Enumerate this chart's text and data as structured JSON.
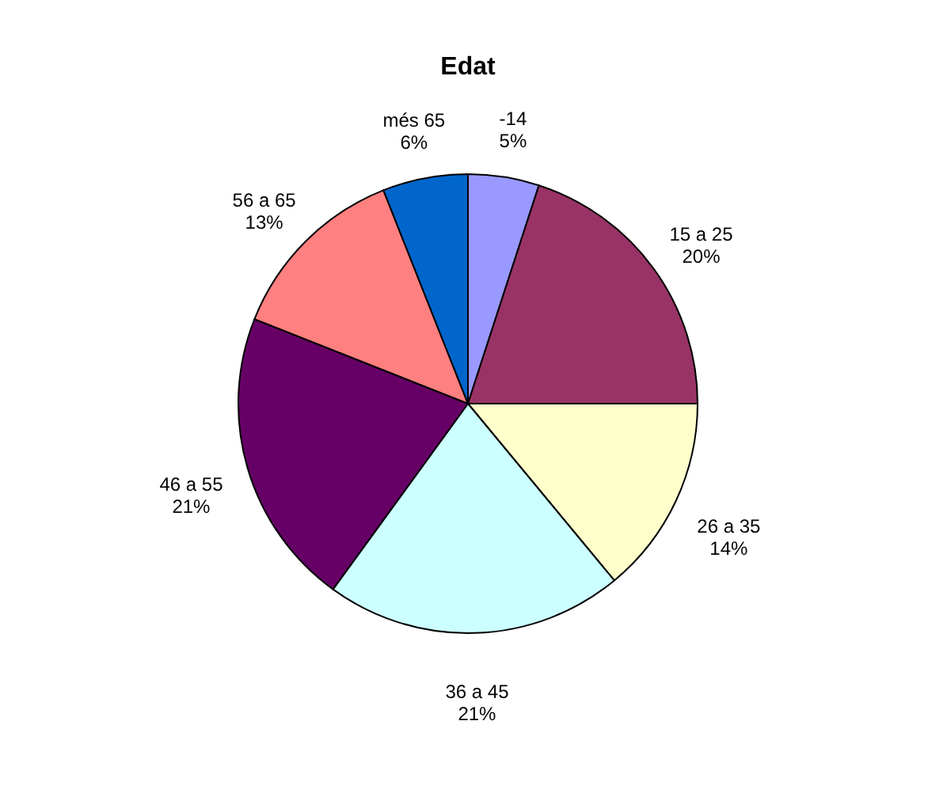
{
  "chart_data": {
    "type": "pie",
    "title": "Edat",
    "categories": [
      "-14",
      "15 a 25",
      "26 a 35",
      "36 a 45",
      "46 a 55",
      "56 a 65",
      "més 65"
    ],
    "values": [
      5,
      20,
      14,
      21,
      21,
      13,
      6
    ],
    "value_labels": [
      "5%",
      "20%",
      "14%",
      "21%",
      "21%",
      "13%",
      "6%"
    ],
    "colors": [
      "#9999ff",
      "#993366",
      "#ffffcc",
      "#ccffff",
      "#660066",
      "#ff8080",
      "#0066cc"
    ]
  }
}
